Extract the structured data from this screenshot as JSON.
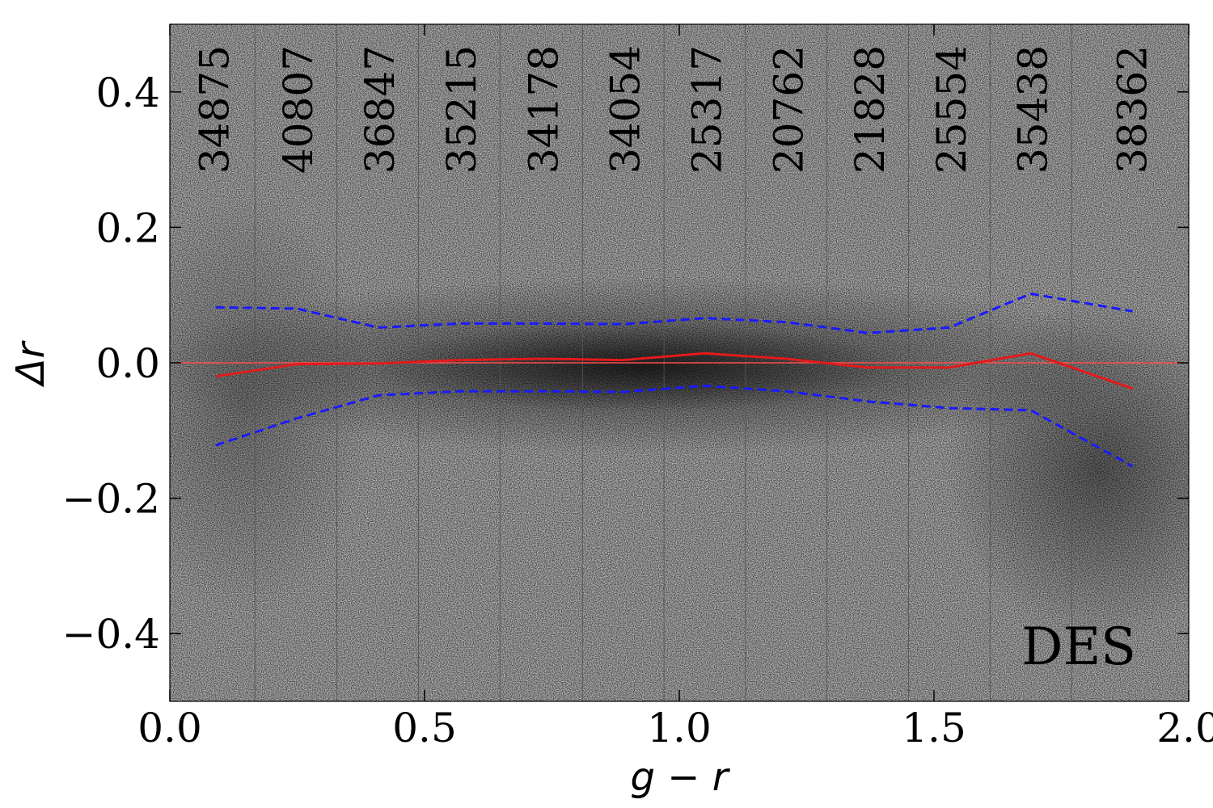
{
  "chart_data": {
    "type": "scatter",
    "title": "",
    "annotation": "DES",
    "xlabel": "g − r",
    "ylabel": "Δr",
    "xlim": [
      0.0,
      2.0
    ],
    "ylim": [
      -0.5,
      0.5
    ],
    "xticks": [
      {
        "value": 0.0,
        "label": "0.0"
      },
      {
        "value": 0.5,
        "label": "0.5"
      },
      {
        "value": 1.0,
        "label": "1.0"
      },
      {
        "value": 1.5,
        "label": "1.5"
      },
      {
        "value": 2.0,
        "label": "2.0"
      }
    ],
    "yticks": [
      {
        "value": -0.4,
        "label": "−0.4"
      },
      {
        "value": -0.2,
        "label": "−0.2"
      },
      {
        "value": 0.0,
        "label": "0.0"
      },
      {
        "value": 0.2,
        "label": "0.2"
      },
      {
        "value": 0.4,
        "label": "0.4"
      }
    ],
    "bin_edges": [
      0.0,
      0.167,
      0.328,
      0.488,
      0.648,
      0.81,
      0.97,
      1.13,
      1.29,
      1.45,
      1.61,
      1.77,
      2.0
    ],
    "bin_counts": [
      "34875",
      "40807",
      "36847",
      "35215",
      "34178",
      "34054",
      "25317",
      "20762",
      "21828",
      "25554",
      "35438",
      "38362"
    ],
    "reference_line": {
      "y": 0.0,
      "color": "#ff4d4d"
    },
    "series": [
      {
        "role": "median",
        "style": "solid",
        "color": "#e31a1c",
        "x": [
          0.09,
          0.25,
          0.41,
          0.57,
          0.73,
          0.89,
          1.05,
          1.21,
          1.37,
          1.53,
          1.69,
          1.89
        ],
        "y": [
          -0.02,
          -0.002,
          -0.001,
          0.004,
          0.006,
          0.004,
          0.014,
          0.006,
          -0.007,
          -0.007,
          0.014,
          -0.038
        ]
      },
      {
        "role": "upper",
        "style": "dashed",
        "color": "#1a1aff",
        "x": [
          0.09,
          0.25,
          0.41,
          0.57,
          0.73,
          0.89,
          1.05,
          1.21,
          1.37,
          1.53,
          1.69,
          1.89
        ],
        "y": [
          0.082,
          0.08,
          0.052,
          0.058,
          0.058,
          0.057,
          0.066,
          0.06,
          0.044,
          0.052,
          0.102,
          0.076
        ]
      },
      {
        "role": "lower",
        "style": "dashed",
        "color": "#1a1aff",
        "x": [
          0.09,
          0.25,
          0.41,
          0.57,
          0.73,
          0.89,
          1.05,
          1.21,
          1.37,
          1.53,
          1.69,
          1.89
        ],
        "y": [
          -0.122,
          -0.082,
          -0.048,
          -0.042,
          -0.042,
          -0.043,
          -0.034,
          -0.042,
          -0.057,
          -0.067,
          -0.07,
          -0.153
        ]
      }
    ],
    "background": "2D density histogram, grayscale",
    "grid": false
  }
}
